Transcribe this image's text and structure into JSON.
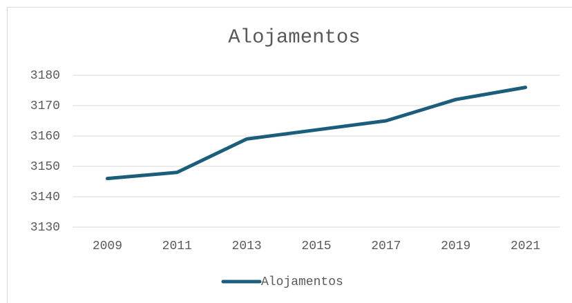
{
  "chart_data": {
    "type": "line",
    "title": "Alojamentos",
    "categories": [
      "2009",
      "2011",
      "2013",
      "2015",
      "2017",
      "2019",
      "2021"
    ],
    "series": [
      {
        "name": "Alojamentos",
        "color": "#1b5e7b",
        "values": [
          3146,
          3148,
          3159,
          3162,
          3165,
          3172,
          3176
        ]
      }
    ],
    "ylim": [
      3130,
      3180
    ],
    "yticks": [
      3130,
      3140,
      3150,
      3160,
      3170,
      3180
    ],
    "grid": true,
    "legend": "bottom"
  }
}
